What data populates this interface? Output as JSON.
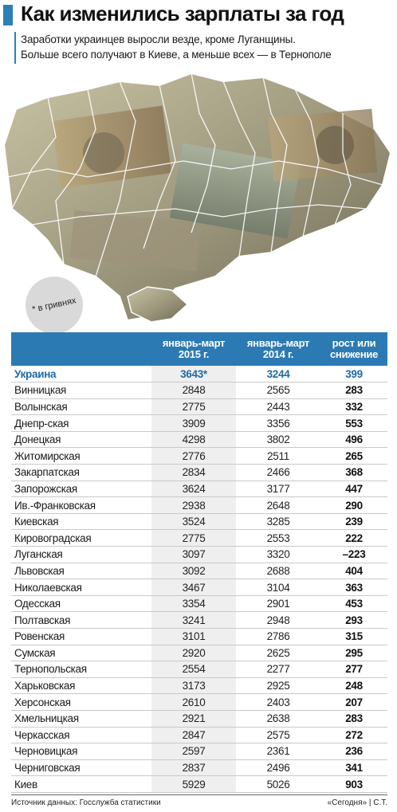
{
  "header": {
    "title": "Как изменились зарплаты за год",
    "subtitle_line1": "Заработки украинцев выросли везде, кроме Луганщины.",
    "subtitle_line2": "Больше всего получают в Киеве, а меньше всех — в Тернополе"
  },
  "unit_note": "* в гривнях",
  "colors": {
    "accent": "#2e7fb8",
    "header_bg": "#2c7ab3",
    "highlight_text": "#1e6aa6"
  },
  "chart_data": {
    "type": "table",
    "columns": [
      "",
      "январь-март 2015 г.",
      "январь-март 2014 г.",
      "рост или снижение"
    ],
    "column_lines": [
      [
        "",
        ""
      ],
      [
        "январь-март",
        "2015 г."
      ],
      [
        "январь-март",
        "2014 г."
      ],
      [
        "рост или",
        "снижение"
      ]
    ],
    "rows": [
      {
        "region": "Украина",
        "y2015": "3643*",
        "y2014": "3244",
        "change": "399",
        "highlight": true
      },
      {
        "region": "Винницкая",
        "y2015": "2848",
        "y2014": "2565",
        "change": "283"
      },
      {
        "region": "Волынская",
        "y2015": "2775",
        "y2014": "2443",
        "change": "332"
      },
      {
        "region": "Днепр-ская",
        "y2015": "3909",
        "y2014": "3356",
        "change": "553"
      },
      {
        "region": "Донецкая",
        "y2015": "4298",
        "y2014": "3802",
        "change": "496"
      },
      {
        "region": "Житомирская",
        "y2015": "2776",
        "y2014": "2511",
        "change": "265"
      },
      {
        "region": "Закарпатская",
        "y2015": "2834",
        "y2014": "2466",
        "change": "368"
      },
      {
        "region": "Запорожская",
        "y2015": "3624",
        "y2014": "3177",
        "change": "447"
      },
      {
        "region": "Ив.-Франковская",
        "y2015": "2938",
        "y2014": "2648",
        "change": "290"
      },
      {
        "region": "Киевская",
        "y2015": "3524",
        "y2014": "3285",
        "change": "239"
      },
      {
        "region": "Кировоградская",
        "y2015": "2775",
        "y2014": "2553",
        "change": "222"
      },
      {
        "region": "Луганская",
        "y2015": "3097",
        "y2014": "3320",
        "change": "–223"
      },
      {
        "region": "Львовская",
        "y2015": "3092",
        "y2014": "2688",
        "change": "404"
      },
      {
        "region": "Николаевская",
        "y2015": "3467",
        "y2014": "3104",
        "change": "363"
      },
      {
        "region": "Одесская",
        "y2015": "3354",
        "y2014": "2901",
        "change": "453"
      },
      {
        "region": "Полтавская",
        "y2015": "3241",
        "y2014": "2948",
        "change": "293"
      },
      {
        "region": "Ровенская",
        "y2015": "3101",
        "y2014": "2786",
        "change": "315"
      },
      {
        "region": "Сумская",
        "y2015": "2920",
        "y2014": "2625",
        "change": "295"
      },
      {
        "region": "Тернопольская",
        "y2015": "2554",
        "y2014": "2277",
        "change": "277"
      },
      {
        "region": "Харьковская",
        "y2015": "3173",
        "y2014": "2925",
        "change": "248"
      },
      {
        "region": "Херсонская",
        "y2015": "2610",
        "y2014": "2403",
        "change": "207"
      },
      {
        "region": "Хмельницкая",
        "y2015": "2921",
        "y2014": "2638",
        "change": "283"
      },
      {
        "region": "Черкасская",
        "y2015": "2847",
        "y2014": "2575",
        "change": "272"
      },
      {
        "region": "Черновицкая",
        "y2015": "2597",
        "y2014": "2361",
        "change": "236"
      },
      {
        "region": "Черниговская",
        "y2015": "2837",
        "y2014": "2496",
        "change": "341"
      },
      {
        "region": "Киев",
        "y2015": "5929",
        "y2014": "5026",
        "change": "903"
      }
    ]
  },
  "footer": {
    "source": "Источник данных: Госслужба статистики",
    "credit": "«Сегодня» | С.Т."
  }
}
